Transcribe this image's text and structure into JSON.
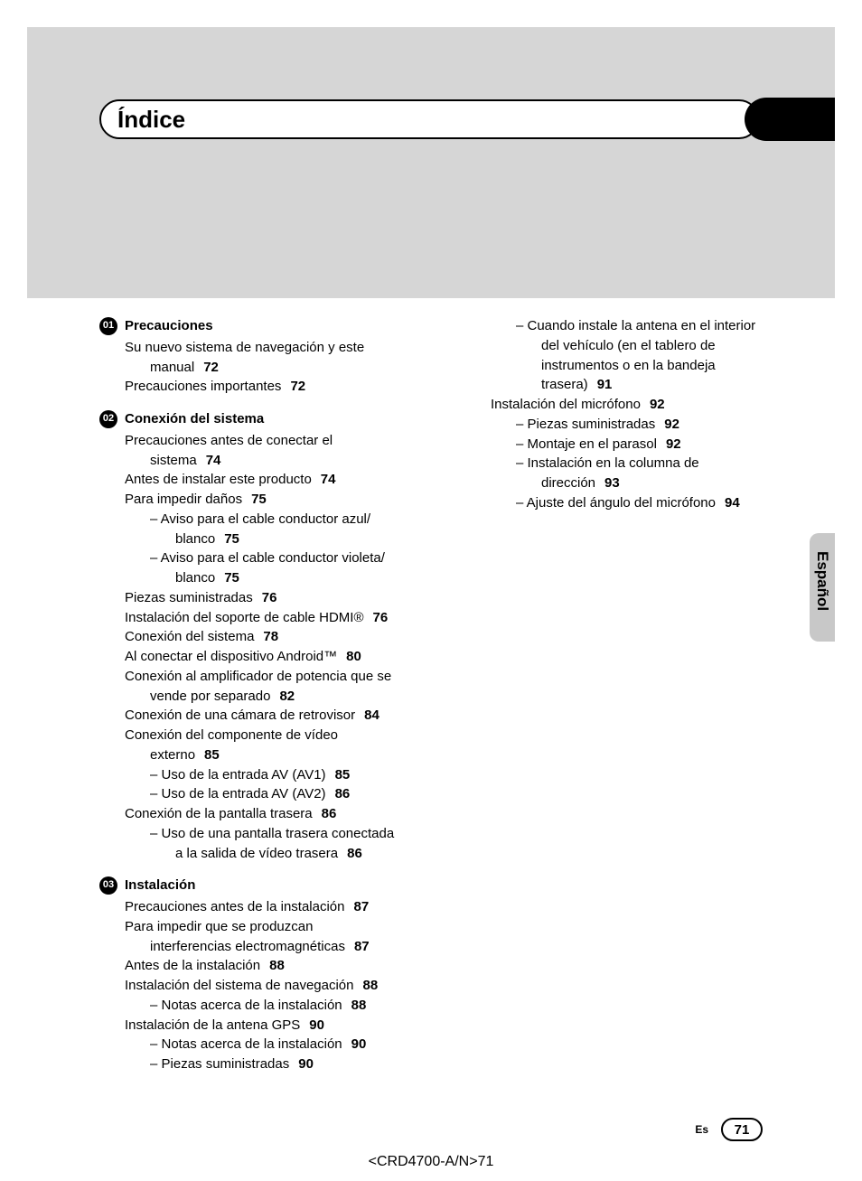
{
  "title": "Índice",
  "lang_tab": "Español",
  "footer_lang": "Es",
  "footer_page": "71",
  "doc_code": "<CRD4700-A/N>71",
  "sections": {
    "s01": {
      "num": "01",
      "title": "Precauciones"
    },
    "s02": {
      "num": "02",
      "title": "Conexión del sistema"
    },
    "s03": {
      "num": "03",
      "title": "Instalación"
    }
  },
  "col1": {
    "e01_1a": "Su nuevo sistema de navegación y este",
    "e01_1b": "manual",
    "p01_1": "72",
    "e01_2": "Precauciones importantes",
    "p01_2": "72",
    "e02_1a": "Precauciones antes de conectar el",
    "e02_1b": "sistema",
    "p02_1": "74",
    "e02_2": "Antes de instalar este producto",
    "p02_2": "74",
    "e02_3": "Para impedir daños",
    "p02_3": "75",
    "e02_3s1a": "– Aviso para el cable conductor azul/",
    "e02_3s1b": "blanco",
    "p02_3s1": "75",
    "e02_3s2a": "– Aviso para el cable conductor violeta/",
    "e02_3s2b": "blanco",
    "p02_3s2": "75",
    "e02_4": "Piezas suministradas",
    "p02_4": "76",
    "e02_5": "Instalación del soporte de cable HDMI®",
    "p02_5": "76",
    "e02_6": "Conexión del sistema",
    "p02_6": "78",
    "e02_7": "Al conectar el dispositivo Android™",
    "p02_7": "80",
    "e02_8a": "Conexión al amplificador de potencia que se",
    "e02_8b": "vende por separado",
    "p02_8": "82",
    "e02_9": "Conexión de una cámara de retrovisor",
    "p02_9": "84",
    "e02_10a": "Conexión del componente de vídeo",
    "e02_10b": "externo",
    "p02_10": "85",
    "e02_10s1": "– Uso de la entrada AV (AV1)",
    "p02_10s1": "85",
    "e02_10s2": "– Uso de la entrada AV (AV2)",
    "p02_10s2": "86",
    "e02_11": "Conexión de la pantalla trasera",
    "p02_11": "86",
    "e02_11s1a": "– Uso de una pantalla trasera conectada",
    "e02_11s1b": "a la salida de vídeo trasera",
    "p02_11s1": "86",
    "e03_1": "Precauciones antes de la instalación",
    "p03_1": "87",
    "e03_2a": "Para impedir que se produzcan",
    "e03_2b": "interferencias electromagnéticas",
    "p03_2": "87",
    "e03_3": "Antes de la instalación",
    "p03_3": "88",
    "e03_4": "Instalación del sistema de navegación",
    "p03_4": "88",
    "e03_4s1": "– Notas acerca de la instalación",
    "p03_4s1": "88",
    "e03_5": "Instalación de la antena GPS",
    "p03_5": "90",
    "e03_5s1": "– Notas acerca de la instalación",
    "p03_5s1": "90",
    "e03_5s2": "– Piezas suministradas",
    "p03_5s2": "90"
  },
  "col2": {
    "s1a": "– Cuando instale la antena en el interior",
    "s1b": "del vehículo (en el tablero de",
    "s1c": "instrumentos o en la bandeja",
    "s1d": "trasera)",
    "p1": "91",
    "e1": "Instalación del micrófono",
    "pe1": "92",
    "s2": "– Piezas suministradas",
    "p2": "92",
    "s3": "– Montaje en el parasol",
    "p3": "92",
    "s4a": "– Instalación en la columna de",
    "s4b": "dirección",
    "p4": "93",
    "s5": "– Ajuste del ángulo del micrófono",
    "p5": "94"
  }
}
